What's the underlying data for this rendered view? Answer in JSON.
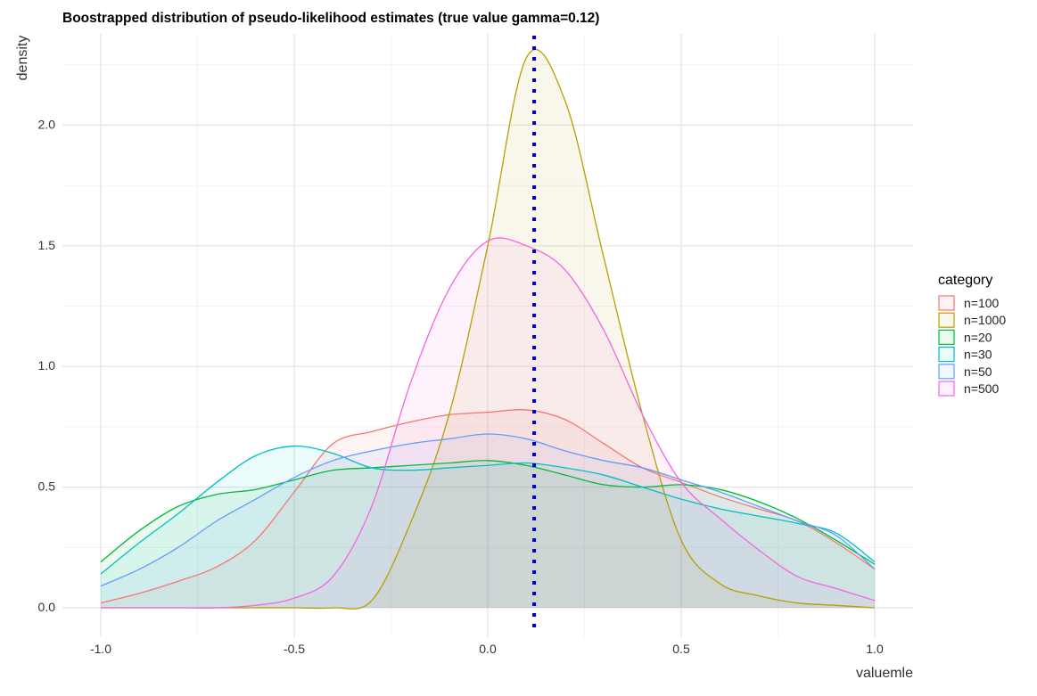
{
  "chart_data": {
    "type": "area",
    "title": "Boostrapped distribution of pseudo-likelihood estimates  (true value gamma=0.12)",
    "xlabel": "valuemle",
    "ylabel": "density",
    "xlim": [
      -1.0,
      1.0
    ],
    "ylim": [
      0.0,
      2.3
    ],
    "x_ticks": [
      "-1.0",
      "-0.5",
      "0.0",
      "0.5",
      "1.0"
    ],
    "y_ticks": [
      "0.0",
      "0.5",
      "1.0",
      "1.5",
      "2.0"
    ],
    "grid": true,
    "legend": {
      "title": "category",
      "placement": "right"
    },
    "reference_line": {
      "x": 0.12,
      "style": "dotted",
      "color": "#0000cc"
    },
    "x": [
      -1.0,
      -0.9,
      -0.8,
      -0.7,
      -0.6,
      -0.5,
      -0.4,
      -0.3,
      -0.2,
      -0.1,
      0.0,
      0.1,
      0.2,
      0.3,
      0.4,
      0.5,
      0.6,
      0.7,
      0.8,
      0.9,
      1.0
    ],
    "series": [
      {
        "name": "n=100",
        "color": "#F8766D",
        "values": [
          0.02,
          0.06,
          0.11,
          0.17,
          0.28,
          0.48,
          0.68,
          0.73,
          0.77,
          0.8,
          0.81,
          0.82,
          0.78,
          0.68,
          0.58,
          0.52,
          0.46,
          0.41,
          0.36,
          0.27,
          0.16
        ]
      },
      {
        "name": "n=1000",
        "color": "#B79F00",
        "values": [
          0.0,
          0.0,
          0.0,
          0.0,
          0.0,
          0.0,
          0.0,
          0.03,
          0.35,
          0.8,
          1.5,
          2.28,
          2.1,
          1.45,
          0.8,
          0.28,
          0.1,
          0.05,
          0.02,
          0.01,
          0.0
        ]
      },
      {
        "name": "n=20",
        "color": "#00BA38",
        "values": [
          0.19,
          0.32,
          0.42,
          0.47,
          0.49,
          0.53,
          0.57,
          0.58,
          0.59,
          0.6,
          0.61,
          0.59,
          0.55,
          0.51,
          0.5,
          0.51,
          0.49,
          0.44,
          0.37,
          0.28,
          0.18
        ]
      },
      {
        "name": "n=30",
        "color": "#00BFC4",
        "values": [
          0.14,
          0.27,
          0.39,
          0.52,
          0.63,
          0.67,
          0.64,
          0.58,
          0.57,
          0.58,
          0.59,
          0.6,
          0.58,
          0.55,
          0.5,
          0.45,
          0.41,
          0.38,
          0.35,
          0.31,
          0.19
        ]
      },
      {
        "name": "n=50",
        "color": "#619CFF",
        "values": [
          0.09,
          0.16,
          0.25,
          0.36,
          0.45,
          0.54,
          0.61,
          0.65,
          0.68,
          0.7,
          0.72,
          0.7,
          0.65,
          0.61,
          0.58,
          0.53,
          0.48,
          0.42,
          0.36,
          0.3,
          0.16
        ]
      },
      {
        "name": "n=500",
        "color": "#F564E3",
        "values": [
          0.0,
          0.0,
          0.0,
          0.0,
          0.01,
          0.04,
          0.13,
          0.42,
          0.93,
          1.32,
          1.52,
          1.5,
          1.4,
          1.15,
          0.8,
          0.52,
          0.37,
          0.24,
          0.13,
          0.08,
          0.03
        ]
      }
    ]
  }
}
